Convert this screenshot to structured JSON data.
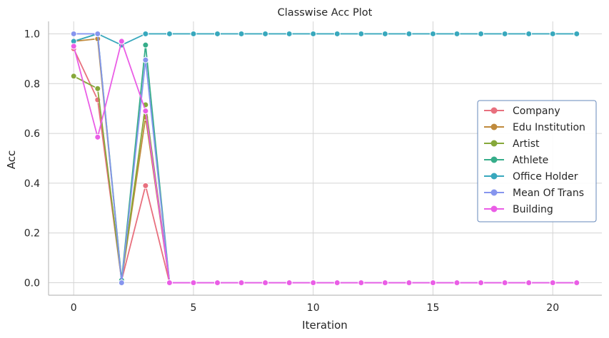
{
  "chart_data": {
    "type": "line",
    "title": "Classwise Acc Plot",
    "xlabel": "Iteration",
    "ylabel": "Acc",
    "xlim": [
      -1.05,
      22.05
    ],
    "ylim": [
      -0.05,
      1.05
    ],
    "xticks": [
      0,
      5,
      10,
      15,
      20
    ],
    "yticks": [
      0.0,
      0.2,
      0.4,
      0.6,
      0.8,
      1.0
    ],
    "ytick_labels": [
      "0.0",
      "0.2",
      "0.4",
      "0.6",
      "0.8",
      "1.0"
    ],
    "grid": true,
    "legend_position": "center-right",
    "x": [
      0,
      1,
      2,
      3,
      4,
      5,
      6,
      7,
      8,
      9,
      10,
      11,
      12,
      13,
      14,
      15,
      16,
      17,
      18,
      19,
      20,
      21
    ],
    "series": [
      {
        "name": "Company",
        "color": "#e8707e",
        "values": [
          0.94,
          0.735,
          0.01,
          0.39,
          0,
          0,
          0,
          0,
          0,
          0,
          0,
          0,
          0,
          0,
          0,
          0,
          0,
          0,
          0,
          0,
          0,
          0
        ]
      },
      {
        "name": "Edu Institution",
        "color": "#bf8a3c",
        "values": [
          0.97,
          0.98,
          0.01,
          0.665,
          0,
          0,
          0,
          0,
          0,
          0,
          0,
          0,
          0,
          0,
          0,
          0,
          0,
          0,
          0,
          0,
          0,
          0
        ]
      },
      {
        "name": "Artist",
        "color": "#86a83a",
        "values": [
          0.83,
          0.78,
          0.01,
          0.715,
          0,
          0,
          0,
          0,
          0,
          0,
          0,
          0,
          0,
          0,
          0,
          0,
          0,
          0,
          0,
          0,
          0,
          0
        ]
      },
      {
        "name": "Athlete",
        "color": "#36ad8a",
        "values": [
          0.97,
          1.0,
          0.01,
          0.955,
          0,
          0,
          0,
          0,
          0,
          0,
          0,
          0,
          0,
          0,
          0,
          0,
          0,
          0,
          0,
          0,
          0,
          0
        ]
      },
      {
        "name": "Office Holder",
        "color": "#38a8bd",
        "values": [
          0.97,
          1.0,
          0.955,
          1.0,
          1.0,
          1.0,
          1.0,
          1.0,
          1.0,
          1.0,
          1.0,
          1.0,
          1.0,
          1.0,
          1.0,
          1.0,
          1.0,
          1.0,
          1.0,
          1.0,
          1.0,
          1.0
        ]
      },
      {
        "name": "Mean Of Trans",
        "color": "#8695ee",
        "values": [
          1.0,
          1.0,
          0.0,
          0.895,
          0,
          0,
          0,
          0,
          0,
          0,
          0,
          0,
          0,
          0,
          0,
          0,
          0,
          0,
          0,
          0,
          0,
          0
        ]
      },
      {
        "name": "Building",
        "color": "#ea5de6",
        "values": [
          0.95,
          0.585,
          0.97,
          0.69,
          0,
          0,
          0,
          0,
          0,
          0,
          0,
          0,
          0,
          0,
          0,
          0,
          0,
          0,
          0,
          0,
          0,
          0
        ]
      }
    ]
  }
}
